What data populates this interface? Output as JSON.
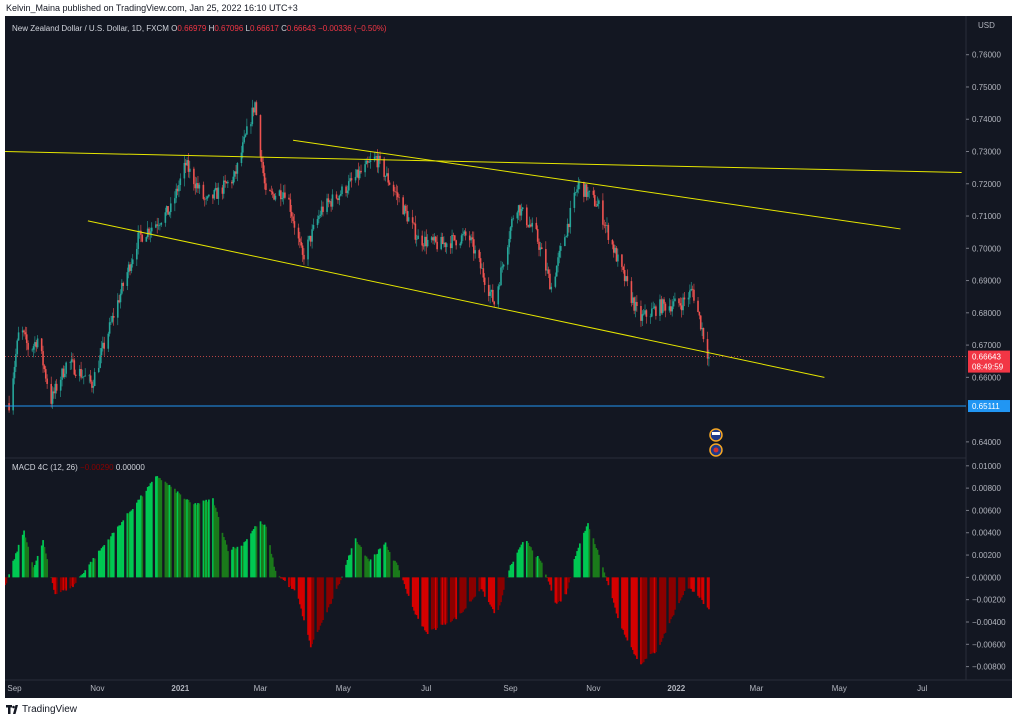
{
  "header": {
    "published_text": "Kelvin_Maina published on TradingView.com, Jan 25, 2022 16:10 UTC+3"
  },
  "footer": {
    "logo_text": "TradingView"
  },
  "legend": {
    "title": "New Zealand Dollar / U.S. Dollar, 1D, FXCM",
    "open_label": "O",
    "open": "0.66979",
    "high_label": "H",
    "high": "0.67096",
    "low_label": "L",
    "low": "0.66617",
    "close_label": "C",
    "close": "0.66643",
    "change": "−0.00336 (−0.50%)"
  },
  "macd_legend": {
    "name": "MACD 4C (12, 26)",
    "value1": "−0.00290",
    "value2": "0.00000"
  },
  "price_axis": {
    "currency": "USD",
    "ticks": [
      "0.76000",
      "0.75000",
      "0.74000",
      "0.73000",
      "0.72000",
      "0.71000",
      "0.70000",
      "0.69000",
      "0.68000",
      "0.67000",
      "0.66000",
      "0.64000"
    ],
    "current_price": "0.66643",
    "countdown": "08:49:59",
    "support_price": "0.65111"
  },
  "macd_axis": {
    "ticks": [
      "0.01000",
      "0.00800",
      "0.00600",
      "0.00400",
      "0.00200",
      "0.00000",
      "−0.00200",
      "−0.00400",
      "−0.00600",
      "−0.00800"
    ]
  },
  "time_axis": {
    "ticks": [
      "Sep",
      "Nov",
      "2021",
      "Mar",
      "May",
      "Jul",
      "Sep",
      "Nov",
      "2022",
      "Mar",
      "May",
      "Jul"
    ]
  },
  "colors": {
    "background": "#131722",
    "up_candle": "#26a69a",
    "down_candle": "#ef5350",
    "trendline": "#e6e600",
    "support": "#2196f3",
    "macd_up_strong": "#00c853",
    "macd_up_weak": "#1b7a1b",
    "macd_down_strong": "#d50000",
    "macd_down_weak": "#8b0000",
    "price_badge": "#f23645"
  },
  "chart_data": {
    "type": "candlestick",
    "title": "New Zealand Dollar / U.S. Dollar, 1D, FXCM",
    "price_range": [
      0.635,
      0.772
    ],
    "macd_range": [
      -0.0092,
      0.0107
    ],
    "price_path_anchors": [
      {
        "d": "2020-08-28",
        "p": 0.652
      },
      {
        "d": "2020-09-05",
        "p": 0.676
      },
      {
        "d": "2020-09-12",
        "p": 0.668
      },
      {
        "d": "2020-09-18",
        "p": 0.672
      },
      {
        "d": "2020-09-28",
        "p": 0.653
      },
      {
        "d": "2020-10-10",
        "p": 0.665
      },
      {
        "d": "2020-10-28",
        "p": 0.658
      },
      {
        "d": "2020-11-15",
        "p": 0.682
      },
      {
        "d": "2020-12-01",
        "p": 0.703
      },
      {
        "d": "2020-12-25",
        "p": 0.712
      },
      {
        "d": "2021-01-05",
        "p": 0.726
      },
      {
        "d": "2021-01-20",
        "p": 0.714
      },
      {
        "d": "2021-02-10",
        "p": 0.722
      },
      {
        "d": "2021-02-25",
        "p": 0.745
      },
      {
        "d": "2021-03-05",
        "p": 0.716
      },
      {
        "d": "2021-03-20",
        "p": 0.718
      },
      {
        "d": "2021-04-01",
        "p": 0.697
      },
      {
        "d": "2021-04-15",
        "p": 0.712
      },
      {
        "d": "2021-05-01",
        "p": 0.718
      },
      {
        "d": "2021-05-25",
        "p": 0.728
      },
      {
        "d": "2021-06-10",
        "p": 0.716
      },
      {
        "d": "2021-06-25",
        "p": 0.703
      },
      {
        "d": "2021-07-10",
        "p": 0.701
      },
      {
        "d": "2021-08-01",
        "p": 0.704
      },
      {
        "d": "2021-08-20",
        "p": 0.683
      },
      {
        "d": "2021-09-05",
        "p": 0.714
      },
      {
        "d": "2021-09-20",
        "p": 0.704
      },
      {
        "d": "2021-10-01",
        "p": 0.688
      },
      {
        "d": "2021-10-21",
        "p": 0.72
      },
      {
        "d": "2021-11-05",
        "p": 0.713
      },
      {
        "d": "2021-11-20",
        "p": 0.695
      },
      {
        "d": "2021-12-05",
        "p": 0.678
      },
      {
        "d": "2021-12-20",
        "p": 0.682
      },
      {
        "d": "2022-01-05",
        "p": 0.683
      },
      {
        "d": "2022-01-13",
        "p": 0.687
      },
      {
        "d": "2022-01-20",
        "p": 0.675
      },
      {
        "d": "2022-01-25",
        "p": 0.666
      }
    ],
    "trendlines": [
      {
        "name": "upper-horizontal-resistance",
        "from": {
          "d": "2020-08-25",
          "p": 0.73
        },
        "to": {
          "d": "2022-07-30",
          "p": 0.7235
        }
      },
      {
        "name": "channel-upper-line",
        "from": {
          "d": "2021-03-25",
          "p": 0.7335
        },
        "to": {
          "d": "2022-06-15",
          "p": 0.706
        }
      },
      {
        "name": "channel-lower-line",
        "from": {
          "d": "2020-10-25",
          "p": 0.7085
        },
        "to": {
          "d": "2022-04-20",
          "p": 0.66
        }
      }
    ],
    "support_level": 0.65111,
    "macd_anchors": [
      {
        "d": "2020-08-25",
        "v": -0.0008
      },
      {
        "d": "2020-09-08",
        "v": 0.0042
      },
      {
        "d": "2020-09-15",
        "v": 0.0008
      },
      {
        "d": "2020-09-22",
        "v": 0.0032
      },
      {
        "d": "2020-10-01",
        "v": -0.0015
      },
      {
        "d": "2020-10-14",
        "v": -0.0008
      },
      {
        "d": "2020-10-25",
        "v": 0.001
      },
      {
        "d": "2020-12-15",
        "v": 0.0091
      },
      {
        "d": "2021-01-10",
        "v": 0.0065
      },
      {
        "d": "2021-01-25",
        "v": 0.007
      },
      {
        "d": "2021-02-05",
        "v": 0.0025
      },
      {
        "d": "2021-02-15",
        "v": 0.0028
      },
      {
        "d": "2021-02-28",
        "v": 0.005
      },
      {
        "d": "2021-03-05",
        "v": 0.0045
      },
      {
        "d": "2021-03-12",
        "v": 0.0005
      },
      {
        "d": "2021-03-28",
        "v": -0.0015
      },
      {
        "d": "2021-04-07",
        "v": -0.0062
      },
      {
        "d": "2021-04-25",
        "v": -0.0015
      },
      {
        "d": "2021-05-10",
        "v": 0.0035
      },
      {
        "d": "2021-05-20",
        "v": 0.0015
      },
      {
        "d": "2021-06-01",
        "v": 0.003
      },
      {
        "d": "2021-06-12",
        "v": 0.0005
      },
      {
        "d": "2021-06-20",
        "v": -0.0025
      },
      {
        "d": "2021-07-01",
        "v": -0.005
      },
      {
        "d": "2021-07-25",
        "v": -0.0035
      },
      {
        "d": "2021-08-10",
        "v": -0.001
      },
      {
        "d": "2021-08-22",
        "v": -0.0035
      },
      {
        "d": "2021-09-01",
        "v": 0.001
      },
      {
        "d": "2021-09-12",
        "v": 0.0035
      },
      {
        "d": "2021-09-25",
        "v": 0.001
      },
      {
        "d": "2021-10-05",
        "v": -0.0025
      },
      {
        "d": "2021-10-12",
        "v": -0.0015
      },
      {
        "d": "2021-10-20",
        "v": 0.0025
      },
      {
        "d": "2021-10-28",
        "v": 0.0048
      },
      {
        "d": "2021-11-08",
        "v": 0.001
      },
      {
        "d": "2021-11-20",
        "v": -0.004
      },
      {
        "d": "2021-12-05",
        "v": -0.0078
      },
      {
        "d": "2021-12-18",
        "v": -0.0065
      },
      {
        "d": "2021-12-31",
        "v": -0.003
      },
      {
        "d": "2022-01-08",
        "v": -0.001
      },
      {
        "d": "2022-01-15",
        "v": -0.0012
      },
      {
        "d": "2022-01-25",
        "v": -0.003
      }
    ]
  }
}
